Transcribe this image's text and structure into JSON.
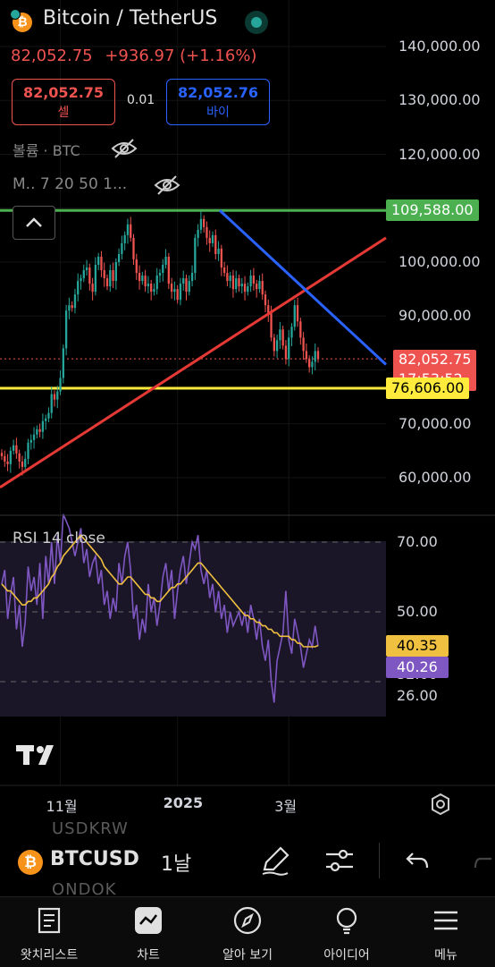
{
  "header": {
    "title": "Bitcoin / TetherUS",
    "last_price": "82,052.75",
    "change": "+936.97 (+1.16%)",
    "sell_price": "82,052.75",
    "sell_label": "셀",
    "spread": "0.01",
    "buy_price": "82,052.76",
    "buy_label": "바이",
    "volume_label": "볼륨 · BTC",
    "ma_label": "M.. 7 20 50 1..."
  },
  "colors": {
    "up": "#26a69a",
    "down": "#ef5350",
    "rsi": "#7e57c2",
    "rsi_ma": "#f0c040",
    "resistance": "#4caf50",
    "support": "#ffeb3b",
    "trend_up": "#e53935",
    "trend_down": "#2962ff"
  },
  "chart_data": [
    {
      "type": "candlestick",
      "title": "Bitcoin / TetherUS",
      "y_ticks": [
        "140,000.00",
        "130,000.00",
        "120,000.00",
        "110,000.00",
        "100,000.00",
        "90,000.00",
        "80,000.00",
        "70,000.00",
        "60,000.00"
      ],
      "ylim": [
        56000,
        146000
      ],
      "x_ticks": [
        "11월",
        "2025",
        "3월"
      ],
      "x_tick_index": [
        20,
        60,
        98
      ],
      "closes": [
        64000,
        63000,
        62500,
        65000,
        66000,
        64500,
        63000,
        62000,
        63500,
        66500,
        67000,
        68000,
        69000,
        68500,
        70500,
        71000,
        72000,
        75500,
        74500,
        76000,
        78500,
        84000,
        91000,
        92000,
        91500,
        94000,
        96500,
        97000,
        98500,
        99000,
        96000,
        94500,
        99500,
        101000,
        98500,
        97000,
        95500,
        98500,
        96500,
        100000,
        101500,
        103500,
        105000,
        107000,
        104500,
        100500,
        98000,
        96500,
        97500,
        95500,
        96000,
        94500,
        95000,
        97500,
        98000,
        99500,
        101000,
        96000,
        94500,
        95000,
        93000,
        96000,
        97000,
        94500,
        96500,
        98000,
        104500,
        106000,
        108000,
        106500,
        104500,
        103500,
        105000,
        101500,
        102500,
        99000,
        98000,
        96500,
        97500,
        95000,
        97000,
        95500,
        96000,
        94500,
        95500,
        97500,
        96000,
        95000,
        96500,
        94000,
        92000,
        90500,
        86000,
        83500,
        85500,
        87500,
        84500,
        82000,
        86000,
        88000,
        92000,
        89000,
        86000,
        83500,
        82000,
        80500,
        81500,
        83500,
        82052
      ],
      "price_tags": [
        {
          "label": "109,588.00",
          "value": 109588,
          "color": "#4caf50"
        },
        {
          "label": "82,052.75",
          "value": 82052.75,
          "color": "#ef5350",
          "sub": "17:53:52"
        },
        {
          "label": "76,606.00",
          "value": 76606,
          "color": "#ffeb3b"
        }
      ]
    },
    {
      "type": "line",
      "title": "RSI 14 close",
      "y_ticks": [
        "70.00",
        "50.00",
        "32.00",
        "26.00"
      ],
      "ylim": [
        20,
        76
      ],
      "bands": [
        70,
        30
      ],
      "series": [
        {
          "name": "RSI",
          "values": [
            58,
            62,
            48,
            55,
            60,
            45,
            52,
            40,
            47,
            63,
            56,
            60,
            52,
            64,
            48,
            66,
            58,
            70,
            58,
            72,
            64,
            78,
            76,
            74,
            70,
            66,
            70,
            74,
            64,
            68,
            60,
            64,
            66,
            58,
            62,
            52,
            56,
            48,
            54,
            50,
            64,
            58,
            66,
            70,
            62,
            48,
            52,
            42,
            48,
            44,
            58,
            50,
            54,
            46,
            52,
            60,
            64,
            56,
            62,
            48,
            56,
            62,
            66,
            58,
            64,
            70,
            68,
            72,
            62,
            58,
            62,
            54,
            58,
            50,
            56,
            48,
            52,
            44,
            50,
            46,
            48,
            50,
            46,
            50,
            44,
            52,
            48,
            42,
            48,
            40,
            36,
            42,
            30,
            24,
            36,
            40,
            44,
            56,
            42,
            38,
            48,
            44,
            40,
            34,
            38,
            42,
            40,
            46,
            40.26
          ]
        },
        {
          "name": "RSI MA",
          "values": [
            58,
            57,
            56,
            56,
            55,
            54,
            53,
            52,
            52,
            53,
            53,
            54,
            54,
            55,
            56,
            57,
            58,
            60,
            61,
            63,
            64,
            66,
            67,
            68,
            69,
            70,
            71,
            72,
            71,
            70,
            69,
            68,
            67,
            66,
            65,
            63,
            62,
            61,
            60,
            59,
            58,
            58,
            59,
            60,
            60,
            59,
            58,
            57,
            56,
            55,
            55,
            54,
            54,
            53,
            53,
            54,
            55,
            56,
            57,
            57,
            58,
            58,
            59,
            60,
            61,
            62,
            63,
            64,
            64,
            63,
            62,
            61,
            60,
            59,
            58,
            57,
            56,
            55,
            54,
            53,
            52,
            51,
            50,
            49,
            49,
            48,
            48,
            47,
            47,
            46,
            46,
            45,
            45,
            44,
            44,
            43,
            43,
            43,
            43,
            42,
            42,
            41,
            41,
            40,
            40,
            40,
            40,
            40,
            40.35
          ]
        }
      ],
      "value_tags": [
        {
          "label": "40.35",
          "value": 40.35,
          "color": "#f0c040"
        },
        {
          "label": "40.26",
          "value": 40.26,
          "color": "#7e57c2"
        }
      ]
    }
  ],
  "toolbar": {
    "symbol": "BTCUSD",
    "ghost_top": "USDKRW",
    "ghost_bottom": "ONDOK",
    "interval": "1날"
  },
  "nav": {
    "watchlist": "왓치리스트",
    "chart": "차트",
    "explore": "알아 보기",
    "ideas": "아이디어",
    "menu": "메뉴"
  }
}
